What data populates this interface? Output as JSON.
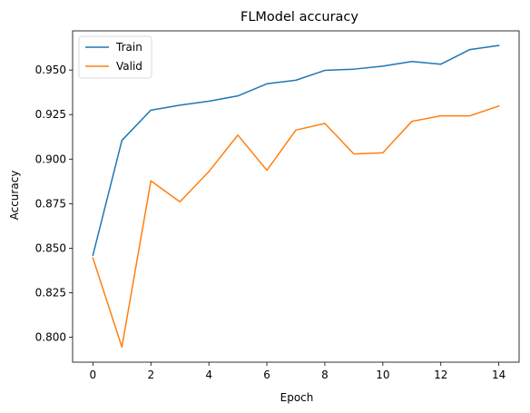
{
  "chart_data": {
    "type": "line",
    "title": "FLModel accuracy",
    "xlabel": "Epoch",
    "ylabel": "Accuracy",
    "x": [
      0,
      1,
      2,
      3,
      4,
      5,
      6,
      7,
      8,
      9,
      10,
      11,
      12,
      13,
      14
    ],
    "xlim": [
      -0.7,
      14.7
    ],
    "ylim": [
      0.786,
      0.972
    ],
    "xticks": [
      0,
      2,
      4,
      6,
      8,
      10,
      12,
      14
    ],
    "xtick_labels": [
      "0",
      "2",
      "4",
      "6",
      "8",
      "10",
      "12",
      "14"
    ],
    "yticks": [
      0.8,
      0.825,
      0.85,
      0.875,
      0.9,
      0.925,
      0.95
    ],
    "ytick_labels": [
      "0.800",
      "0.825",
      "0.850",
      "0.875",
      "0.900",
      "0.925",
      "0.950"
    ],
    "grid": false,
    "legend_position": "upper-left",
    "series": [
      {
        "name": "Train",
        "color": "#1f77b4",
        "values": [
          0.846,
          0.9105,
          0.9275,
          0.9303,
          0.9325,
          0.9355,
          0.9423,
          0.9443,
          0.9498,
          0.9505,
          0.9522,
          0.9548,
          0.9533,
          0.9615,
          0.9638
        ]
      },
      {
        "name": "Valid",
        "color": "#ff7f0e",
        "values": [
          0.8445,
          0.7945,
          0.8878,
          0.876,
          0.893,
          0.9135,
          0.8937,
          0.9163,
          0.92,
          0.9029,
          0.9035,
          0.9212,
          0.9243,
          0.9243,
          0.9298
        ]
      }
    ]
  }
}
